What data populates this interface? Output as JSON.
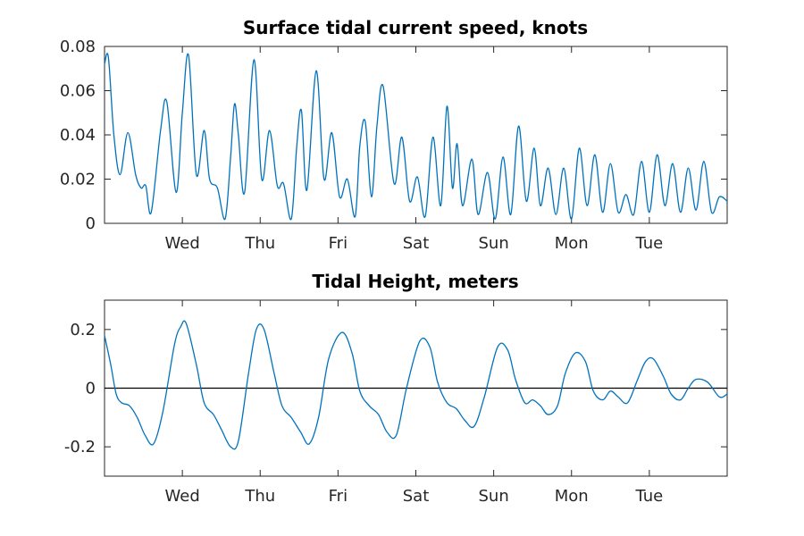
{
  "chart_data": [
    {
      "id": "current",
      "type": "line",
      "title": "Surface tidal current speed, knots",
      "xlabel": "",
      "ylabel": "",
      "xlim": [
        0,
        8
      ],
      "ylim": [
        0,
        0.08
      ],
      "x_ticks": [
        {
          "value": 1,
          "label": "Wed"
        },
        {
          "value": 2,
          "label": "Thu"
        },
        {
          "value": 3,
          "label": "Fri"
        },
        {
          "value": 4,
          "label": "Sat"
        },
        {
          "value": 5,
          "label": "Sun"
        },
        {
          "value": 6,
          "label": "Mon"
        },
        {
          "value": 7,
          "label": "Tue"
        }
      ],
      "y_ticks": [
        {
          "value": 0,
          "label": "0"
        },
        {
          "value": 0.02,
          "label": "0.02"
        },
        {
          "value": 0.04,
          "label": "0.04"
        },
        {
          "value": 0.06,
          "label": "0.06"
        },
        {
          "value": 0.08,
          "label": "0.08"
        }
      ],
      "grid": false,
      "zero_line": false,
      "series": [
        {
          "color": "#0072bd",
          "x": [
            0,
            0.05,
            0.12,
            0.2,
            0.3,
            0.4,
            0.47,
            0.53,
            0.6,
            0.72,
            0.8,
            0.92,
            1.0,
            1.08,
            1.18,
            1.28,
            1.35,
            1.45,
            1.55,
            1.62,
            1.67,
            1.72,
            1.8,
            1.92,
            2.02,
            2.12,
            2.22,
            2.3,
            2.4,
            2.47,
            2.53,
            2.6,
            2.72,
            2.82,
            2.92,
            3.02,
            3.12,
            3.22,
            3.28,
            3.35,
            3.43,
            3.5,
            3.58,
            3.72,
            3.82,
            3.92,
            4.02,
            4.12,
            4.22,
            4.32,
            4.4,
            4.47,
            4.53,
            4.6,
            4.72,
            4.8,
            4.92,
            5.02,
            5.12,
            5.22,
            5.32,
            5.42,
            5.52,
            5.6,
            5.7,
            5.8,
            5.9,
            6.0,
            6.1,
            6.2,
            6.3,
            6.4,
            6.5,
            6.6,
            6.7,
            6.8,
            6.9,
            7.0,
            7.1,
            7.2,
            7.3,
            7.4,
            7.5,
            7.6,
            7.7,
            7.8,
            7.9,
            8.0
          ],
          "values": [
            0.072,
            0.075,
            0.04,
            0.022,
            0.041,
            0.022,
            0.016,
            0.017,
            0.005,
            0.042,
            0.055,
            0.014,
            0.05,
            0.076,
            0.022,
            0.042,
            0.02,
            0.016,
            0.002,
            0.03,
            0.054,
            0.04,
            0.014,
            0.074,
            0.02,
            0.042,
            0.017,
            0.018,
            0.002,
            0.035,
            0.051,
            0.015,
            0.069,
            0.02,
            0.041,
            0.012,
            0.02,
            0.003,
            0.035,
            0.046,
            0.012,
            0.044,
            0.062,
            0.018,
            0.039,
            0.01,
            0.021,
            0.003,
            0.039,
            0.008,
            0.053,
            0.016,
            0.036,
            0.008,
            0.029,
            0.004,
            0.023,
            0.002,
            0.03,
            0.004,
            0.044,
            0.01,
            0.034,
            0.008,
            0.025,
            0.004,
            0.025,
            0.002,
            0.034,
            0.008,
            0.031,
            0.005,
            0.027,
            0.005,
            0.013,
            0.004,
            0.028,
            0.005,
            0.031,
            0.008,
            0.027,
            0.005,
            0.025,
            0.006,
            0.028,
            0.005,
            0.012,
            0.01
          ]
        }
      ]
    },
    {
      "id": "height",
      "type": "line",
      "title": "Tidal Height, meters",
      "xlabel": "",
      "ylabel": "",
      "xlim": [
        0,
        8
      ],
      "ylim": [
        -0.3,
        0.3
      ],
      "x_ticks": [
        {
          "value": 1,
          "label": "Wed"
        },
        {
          "value": 2,
          "label": "Thu"
        },
        {
          "value": 3,
          "label": "Fri"
        },
        {
          "value": 4,
          "label": "Sat"
        },
        {
          "value": 5,
          "label": "Sun"
        },
        {
          "value": 6,
          "label": "Mon"
        },
        {
          "value": 7,
          "label": "Tue"
        }
      ],
      "y_ticks": [
        {
          "value": -0.2,
          "label": "-0.2"
        },
        {
          "value": 0,
          "label": "0"
        },
        {
          "value": 0.2,
          "label": "0.2"
        }
      ],
      "grid": false,
      "zero_line": true,
      "series": [
        {
          "color": "#0072bd",
          "x": [
            0,
            0.08,
            0.15,
            0.22,
            0.32,
            0.42,
            0.52,
            0.63,
            0.75,
            0.9,
            0.98,
            1.05,
            1.18,
            1.28,
            1.4,
            1.5,
            1.62,
            1.72,
            1.85,
            1.95,
            2.05,
            2.18,
            2.28,
            2.4,
            2.52,
            2.63,
            2.75,
            2.88,
            3.05,
            3.18,
            3.28,
            3.4,
            3.52,
            3.63,
            3.75,
            3.88,
            4.05,
            4.18,
            4.28,
            4.4,
            4.52,
            4.63,
            4.75,
            4.88,
            5.05,
            5.18,
            5.28,
            5.4,
            5.5,
            5.6,
            5.7,
            5.82,
            5.92,
            6.05,
            6.18,
            6.28,
            6.4,
            6.5,
            6.6,
            6.72,
            6.85,
            6.95,
            7.05,
            7.18,
            7.28,
            7.4,
            7.5,
            7.6,
            7.75,
            7.9,
            8.0
          ],
          "values": [
            0.18,
            0.08,
            -0.02,
            -0.05,
            -0.06,
            -0.1,
            -0.16,
            -0.19,
            -0.08,
            0.15,
            0.21,
            0.22,
            0.08,
            -0.05,
            -0.09,
            -0.14,
            -0.2,
            -0.18,
            0.05,
            0.2,
            0.2,
            0.05,
            -0.06,
            -0.1,
            -0.15,
            -0.19,
            -0.1,
            0.1,
            0.19,
            0.12,
            -0.01,
            -0.06,
            -0.09,
            -0.15,
            -0.16,
            0.0,
            0.16,
            0.14,
            0.02,
            -0.05,
            -0.07,
            -0.11,
            -0.13,
            -0.03,
            0.14,
            0.13,
            0.03,
            -0.05,
            -0.04,
            -0.06,
            -0.09,
            -0.06,
            0.05,
            0.12,
            0.09,
            -0.01,
            -0.04,
            -0.01,
            -0.03,
            -0.05,
            0.03,
            0.09,
            0.1,
            0.04,
            -0.02,
            -0.04,
            0.0,
            0.03,
            0.02,
            -0.03,
            -0.02
          ]
        }
      ]
    }
  ]
}
